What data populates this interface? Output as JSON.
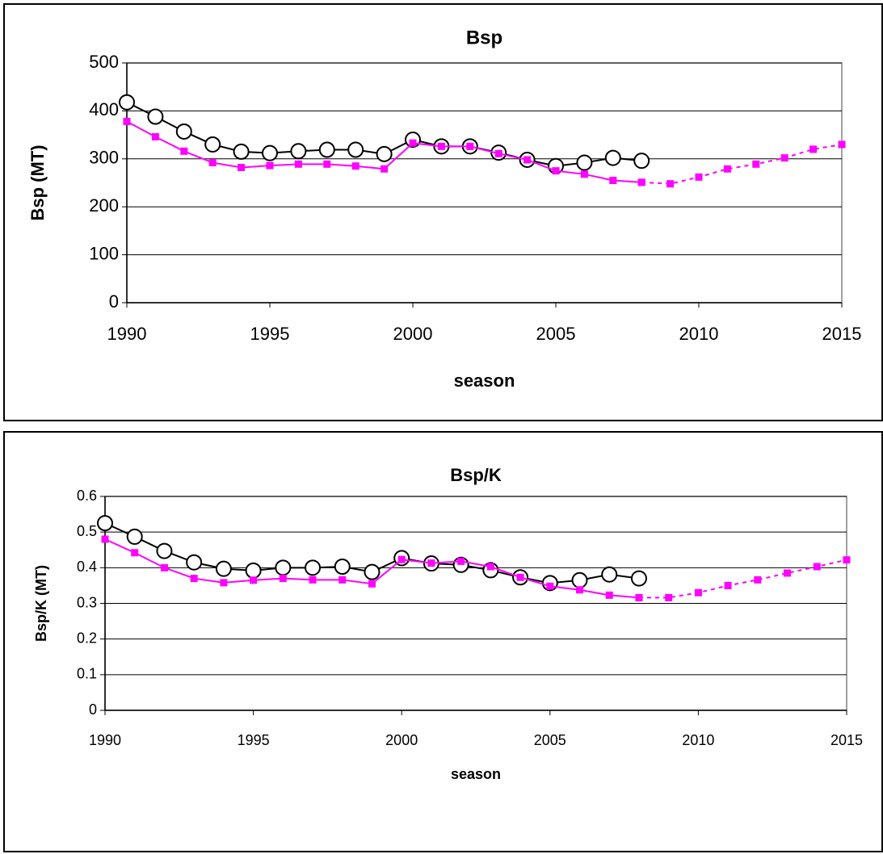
{
  "chart_data": [
    {
      "type": "line",
      "title": "Bsp",
      "xlabel": "season",
      "ylabel": "Bsp (MT)",
      "x": [
        1990,
        1991,
        1992,
        1993,
        1994,
        1995,
        1996,
        1997,
        1998,
        1999,
        2000,
        2001,
        2002,
        2003,
        2004,
        2005,
        2006,
        2007,
        2008,
        2009,
        2010,
        2011,
        2012,
        2013,
        2014,
        2015
      ],
      "xlim": [
        1990,
        2015
      ],
      "xticks": [
        1990,
        1995,
        2000,
        2005,
        2010,
        2015
      ],
      "ylim": [
        0,
        500
      ],
      "yticks": [
        0,
        100,
        200,
        300,
        400,
        500
      ],
      "grid": true,
      "series": [
        {
          "color": "#000000",
          "marker": "circle",
          "dash": false,
          "values": [
            418,
            388,
            357,
            330,
            315,
            312,
            316,
            319,
            319,
            310,
            340,
            326,
            326,
            313,
            298,
            285,
            292,
            302,
            296,
            null,
            null,
            null,
            null,
            null,
            null,
            null
          ]
        },
        {
          "color": "#ff00ff",
          "marker": "square",
          "dash": false,
          "values": [
            378,
            346,
            316,
            292,
            282,
            286,
            289,
            289,
            285,
            279,
            333,
            326,
            326,
            311,
            298,
            275,
            268,
            255,
            251,
            null,
            null,
            null,
            null,
            null,
            null,
            null
          ]
        },
        {
          "color": "#ff00ff",
          "marker": "square",
          "dash": true,
          "values": [
            null,
            null,
            null,
            null,
            null,
            null,
            null,
            null,
            null,
            null,
            null,
            null,
            null,
            null,
            null,
            null,
            null,
            null,
            251,
            248,
            262,
            279,
            289,
            302,
            320,
            330
          ]
        }
      ]
    },
    {
      "type": "line",
      "title": "Bsp/K",
      "xlabel": "season",
      "ylabel": "Bsp/K (MT)",
      "x": [
        1990,
        1991,
        1992,
        1993,
        1994,
        1995,
        1996,
        1997,
        1998,
        1999,
        2000,
        2001,
        2002,
        2003,
        2004,
        2005,
        2006,
        2007,
        2008,
        2009,
        2010,
        2011,
        2012,
        2013,
        2014,
        2015
      ],
      "xlim": [
        1990,
        2015
      ],
      "xticks": [
        1990,
        1995,
        2000,
        2005,
        2010,
        2015
      ],
      "ylim": [
        0,
        0.6
      ],
      "yticks": [
        0,
        0.1,
        0.2,
        0.3,
        0.4,
        0.5,
        0.6
      ],
      "grid": true,
      "series": [
        {
          "color": "#000000",
          "marker": "circle",
          "dash": false,
          "values": [
            0.525,
            0.487,
            0.447,
            0.415,
            0.397,
            0.392,
            0.4,
            0.4,
            0.403,
            0.388,
            0.427,
            0.412,
            0.408,
            0.393,
            0.373,
            0.357,
            0.365,
            0.381,
            0.37,
            null,
            null,
            null,
            null,
            null,
            null,
            null
          ]
        },
        {
          "color": "#ff00ff",
          "marker": "square",
          "dash": false,
          "values": [
            0.48,
            0.442,
            0.4,
            0.37,
            0.358,
            0.365,
            0.37,
            0.366,
            0.366,
            0.355,
            0.423,
            0.413,
            0.418,
            0.403,
            0.373,
            0.348,
            0.338,
            0.323,
            0.316,
            null,
            null,
            null,
            null,
            null,
            null,
            null
          ]
        },
        {
          "color": "#ff00ff",
          "marker": "square",
          "dash": true,
          "values": [
            null,
            null,
            null,
            null,
            null,
            null,
            null,
            null,
            null,
            null,
            null,
            null,
            null,
            null,
            null,
            null,
            null,
            null,
            0.316,
            0.316,
            0.33,
            0.35,
            0.366,
            0.385,
            0.403,
            0.422
          ]
        }
      ]
    }
  ]
}
